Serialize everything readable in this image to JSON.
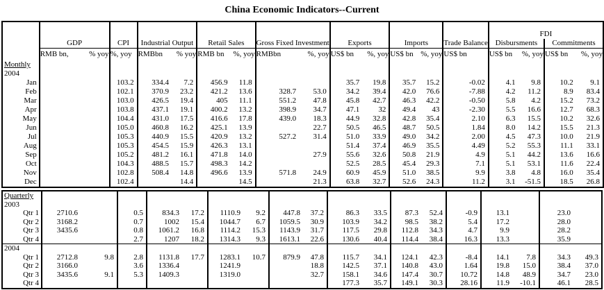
{
  "title": "China Economic Indicators--Current",
  "table": {
    "col_groups": [
      {
        "name": "GDP",
        "units": [
          "RMB bn,",
          "% yoy"
        ]
      },
      {
        "name": "CPI",
        "units": [
          "%, yoy"
        ]
      },
      {
        "name": "Industrial Output",
        "units": [
          "RMBbn",
          "% yoy"
        ]
      },
      {
        "name": "Retail Sales",
        "units": [
          "RMB bn",
          "%, yoy"
        ]
      },
      {
        "name": "Gross Fixed Investment",
        "units": [
          "RMBbn",
          "%, yoy"
        ]
      },
      {
        "name": "Exports",
        "units": [
          "US$ bn",
          "%, yoy"
        ]
      },
      {
        "name": "Imports",
        "units": [
          "US$ bn",
          "%, yoy"
        ]
      },
      {
        "name": "Trade Balance",
        "units": [
          "US$ bn"
        ]
      },
      {
        "name": "FDI",
        "subgroups": [
          {
            "name": "Disbursments",
            "units": [
              "US$ bn",
              "%, yoy"
            ]
          },
          {
            "name": "Commitments",
            "units": [
              "US$ bn",
              "%, yoy"
            ]
          }
        ]
      }
    ],
    "column_keys": [
      "gdp_value",
      "gdp_yoy",
      "cpi_yoy",
      "industrial_output_value",
      "industrial_output_yoy",
      "retail_sales_value",
      "retail_sales_yoy",
      "gross_fixed_investment_value",
      "gross_fixed_investment_yoy",
      "exports_value",
      "exports_yoy",
      "imports_value",
      "imports_yoy",
      "trade_balance",
      "fdi_disbursments_value",
      "fdi_disbursments_yoy",
      "fdi_commitments_value",
      "fdi_commitments_yoy"
    ],
    "sections": [
      {
        "label": "Monthly",
        "blocks": [
          {
            "year": "2004",
            "rows": [
              {
                "label": "Jan",
                "cells": [
                  "",
                  "",
                  "103.2",
                  "334.4",
                  "7.2",
                  "456.9",
                  "11.8",
                  "",
                  "",
                  "35.7",
                  "19.8",
                  "35.7",
                  "15.2",
                  "-0.02",
                  "4.1",
                  "9.8",
                  "10.2",
                  "9.1"
                ]
              },
              {
                "label": "Feb",
                "cells": [
                  "",
                  "",
                  "102.1",
                  "370.9",
                  "23.2",
                  "421.2",
                  "13.6",
                  "328.7",
                  "53.0",
                  "34.2",
                  "39.4",
                  "42.0",
                  "76.6",
                  "-7.88",
                  "4.2",
                  "11.2",
                  "8.9",
                  "83.4"
                ]
              },
              {
                "label": "Mar",
                "cells": [
                  "",
                  "",
                  "103.0",
                  "426.5",
                  "19.4",
                  "405",
                  "11.1",
                  "551.2",
                  "47.8",
                  "45.8",
                  "42.7",
                  "46.3",
                  "42.2",
                  "-0.50",
                  "5.8",
                  "4.2",
                  "15.2",
                  "73.2"
                ]
              },
              {
                "label": "Apr",
                "cells": [
                  "",
                  "",
                  "103.8",
                  "437.1",
                  "19.1",
                  "400.2",
                  "13.2",
                  "398.9",
                  "34.7",
                  "47.1",
                  "32",
                  "49.4",
                  "43",
                  "-2.30",
                  "5.5",
                  "16.6",
                  "12.7",
                  "68.3"
                ]
              },
              {
                "label": "May",
                "cells": [
                  "",
                  "",
                  "104.4",
                  "431.0",
                  "17.5",
                  "416.6",
                  "17.8",
                  "439.0",
                  "18.3",
                  "44.9",
                  "32.8",
                  "42.8",
                  "35.4",
                  "2.10",
                  "6.3",
                  "15.5",
                  "10.2",
                  "32.6"
                ]
              },
              {
                "label": "Jun",
                "cells": [
                  "",
                  "",
                  "105.0",
                  "460.8",
                  "16.2",
                  "425.1",
                  "13.9",
                  "",
                  "22.7",
                  "50.5",
                  "46.5",
                  "48.7",
                  "50.5",
                  "1.84",
                  "8.0",
                  "14.2",
                  "15.5",
                  "21.3"
                ]
              },
              {
                "label": "Jul",
                "cells": [
                  "",
                  "",
                  "105.3",
                  "440.9",
                  "15.5",
                  "420.9",
                  "13.2",
                  "527.2",
                  "31.4",
                  "51.0",
                  "33.9",
                  "49.0",
                  "34.2",
                  "2.00",
                  "4.5",
                  "47.3",
                  "10.0",
                  "21.9"
                ]
              },
              {
                "label": "Aug",
                "cells": [
                  "",
                  "",
                  "105.3",
                  "454.5",
                  "15.9",
                  "426.3",
                  "13.1",
                  "",
                  "",
                  "51.4",
                  "37.4",
                  "46.9",
                  "35.5",
                  "4.49",
                  "5.2",
                  "55.3",
                  "11.1",
                  "33.1"
                ]
              },
              {
                "label": "Sep",
                "cells": [
                  "",
                  "",
                  "105.2",
                  "481.2",
                  "16.1",
                  "471.8",
                  "14.0",
                  "",
                  "27.9",
                  "55.6",
                  "32.6",
                  "50.8",
                  "21.9",
                  "4.9",
                  "5.1",
                  "44.2",
                  "13.6",
                  "16.6"
                ]
              },
              {
                "label": "Oct",
                "cells": [
                  "",
                  "",
                  "104.3",
                  "488.5",
                  "15.7",
                  "498.3",
                  "14.2",
                  "",
                  "",
                  "52.5",
                  "28.5",
                  "45.4",
                  "29.3",
                  "7.1",
                  "5.1",
                  "53.1",
                  "11.6",
                  "22.4"
                ]
              },
              {
                "label": "Nov",
                "cells": [
                  "",
                  "",
                  "102.8",
                  "508.4",
                  "14.8",
                  "496.6",
                  "13.9",
                  "571.8",
                  "24.9",
                  "60.9",
                  "45.9",
                  "51.0",
                  "38.5",
                  "9.9",
                  "3.8",
                  "4.8",
                  "16.0",
                  "35.4"
                ]
              },
              {
                "label": "Dec",
                "cells": [
                  "",
                  "",
                  "102.4",
                  "",
                  "14.4",
                  "",
                  "14.5",
                  "",
                  "21.3",
                  "63.8",
                  "32.7",
                  "52.6",
                  "24.3",
                  "11.2",
                  "3.1",
                  "-51.5",
                  "18.5",
                  "26.8"
                ]
              }
            ]
          }
        ]
      },
      {
        "label": "Quarterly",
        "blocks": [
          {
            "year": "2003",
            "rows": [
              {
                "label": "Qtr 1",
                "cells": [
                  "2710.6",
                  "",
                  "0.5",
                  "834.3",
                  "17.2",
                  "1110.9",
                  "9.2",
                  "447.8",
                  "37.2",
                  "86.3",
                  "33.5",
                  "87.3",
                  "52.4",
                  "-0.9",
                  "13.1",
                  "",
                  "23.0",
                  ""
                ]
              },
              {
                "label": "Qtr 2",
                "cells": [
                  "3168.2",
                  "",
                  "0.7",
                  "1002",
                  "15.4",
                  "1044.7",
                  "6.7",
                  "1059.5",
                  "30.9",
                  "103.9",
                  "34.2",
                  "98.5",
                  "38.2",
                  "5.4",
                  "17.2",
                  "",
                  "28.0",
                  ""
                ]
              },
              {
                "label": "Qtr 3",
                "cells": [
                  "3435.6",
                  "",
                  "0.8",
                  "1061.2",
                  "16.8",
                  "1114.2",
                  "15.3",
                  "1143.9",
                  "31.7",
                  "117.5",
                  "29.8",
                  "112.8",
                  "34.3",
                  "4.7",
                  "9.9",
                  "",
                  "28.2",
                  ""
                ]
              },
              {
                "label": "Qtr 4",
                "cells": [
                  "",
                  "",
                  "2.7",
                  "1207",
                  "18.2",
                  "1314.3",
                  "9.3",
                  "1613.1",
                  "22.6",
                  "130.6",
                  "40.4",
                  "114.4",
                  "38.4",
                  "16.3",
                  "13.3",
                  "",
                  "35.9",
                  ""
                ]
              }
            ]
          },
          {
            "year": "2004",
            "rows": [
              {
                "label": "Qtr 1",
                "cells": [
                  "2712.8",
                  "9.8",
                  "2.8",
                  "1131.8",
                  "17.7",
                  "1283.1",
                  "10.7",
                  "879.9",
                  "47.8",
                  "115.7",
                  "34.1",
                  "124.1",
                  "42.3",
                  "-8.4",
                  "14.1",
                  "7.8",
                  "34.3",
                  "49.3"
                ]
              },
              {
                "label": "Qtr 2",
                "cells": [
                  "3166.0",
                  "",
                  "3.6",
                  "1336.4",
                  "",
                  "1241.9",
                  "",
                  "",
                  "18.8",
                  "142.5",
                  "37.1",
                  "140.8",
                  "43.0",
                  "1.64",
                  "19.8",
                  "15.0",
                  "38.4",
                  "37.0"
                ]
              },
              {
                "label": "Qtr 3",
                "cells": [
                  "3435.6",
                  "9.1",
                  "5.3",
                  "1409.3",
                  "",
                  "1319.0",
                  "",
                  "",
                  "32.7",
                  "158.1",
                  "34.6",
                  "147.4",
                  "30.7",
                  "10.72",
                  "14.8",
                  "48.9",
                  "34.7",
                  "23.0"
                ]
              },
              {
                "label": "Qtr 4",
                "cells": [
                  "",
                  "",
                  "",
                  "",
                  "",
                  "",
                  "",
                  "",
                  "",
                  "177.3",
                  "35.7",
                  "149.1",
                  "30.3",
                  "28.16",
                  "11.9",
                  "-10.1",
                  "46.1",
                  "28.5"
                ]
              }
            ]
          }
        ]
      }
    ]
  }
}
